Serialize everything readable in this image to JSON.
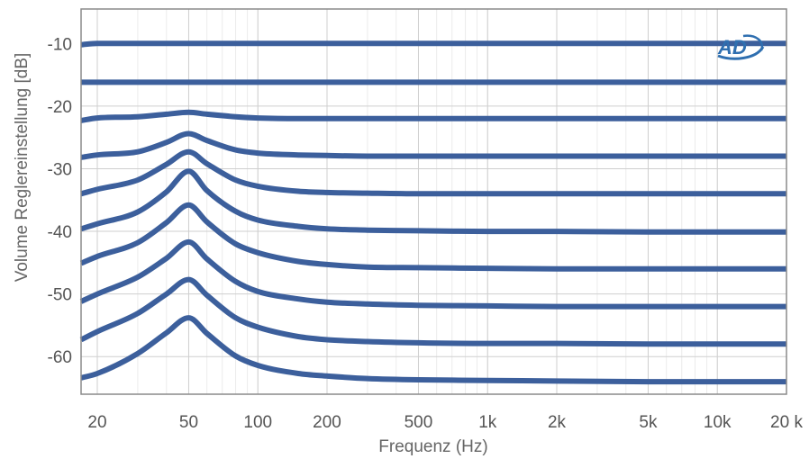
{
  "chart_data": {
    "type": "line",
    "title": "",
    "xlabel": "Frequenz (Hz)",
    "ylabel": "Volume Reglereinstellung [dB]",
    "x_scale": "log",
    "xlim": [
      17,
      20000
    ],
    "ylim": [
      -66,
      -4.5
    ],
    "grid": true,
    "legend": "none",
    "line_color": "#3c5f9c",
    "x_ticks": [
      {
        "value": 20,
        "label": "20"
      },
      {
        "value": 50,
        "label": "50"
      },
      {
        "value": 100,
        "label": "100"
      },
      {
        "value": 200,
        "label": "200"
      },
      {
        "value": 500,
        "label": "500"
      },
      {
        "value": 1000,
        "label": "1k"
      },
      {
        "value": 2000,
        "label": "2k"
      },
      {
        "value": 5000,
        "label": "5k"
      },
      {
        "value": 10000,
        "label": "10k"
      },
      {
        "value": 20000,
        "label": "20 k"
      }
    ],
    "y_ticks": [
      {
        "value": -10,
        "label": "-10"
      },
      {
        "value": -20,
        "label": "-20"
      },
      {
        "value": -30,
        "label": "-30"
      },
      {
        "value": -40,
        "label": "-40"
      },
      {
        "value": -50,
        "label": "-50"
      },
      {
        "value": -60,
        "label": "-60"
      }
    ],
    "x": [
      17,
      20,
      30,
      40,
      50,
      60,
      80,
      100,
      150,
      200,
      300,
      500,
      1000,
      2000,
      5000,
      10000,
      20000
    ],
    "series": [
      {
        "values": [
          -10.2,
          -10,
          -10,
          -10,
          -10,
          -10,
          -10,
          -10,
          -10,
          -10,
          -10,
          -10,
          -10,
          -10,
          -10,
          -10,
          -10
        ]
      },
      {
        "values": [
          -16.2,
          -16.2,
          -16.2,
          -16.2,
          -16.2,
          -16.2,
          -16.2,
          -16.2,
          -16.2,
          -16.2,
          -16.2,
          -16.2,
          -16.2,
          -16.2,
          -16.2,
          -16.2,
          -16.2
        ]
      },
      {
        "values": [
          -22.3,
          -21.9,
          -21.7,
          -21.3,
          -21,
          -21.3,
          -21.7,
          -21.9,
          -22,
          -22,
          -22,
          -22,
          -22,
          -22,
          -22,
          -22,
          -22
        ]
      },
      {
        "values": [
          -28.2,
          -27.8,
          -27.3,
          -25.8,
          -24.4,
          -25.5,
          -27,
          -27.5,
          -27.8,
          -27.9,
          -28,
          -28,
          -28,
          -28,
          -28,
          -28,
          -28
        ]
      },
      {
        "values": [
          -34,
          -33.3,
          -31.8,
          -29.3,
          -27.3,
          -29.2,
          -31.8,
          -32.8,
          -33.6,
          -33.8,
          -33.9,
          -34,
          -34,
          -34,
          -34,
          -34,
          -34
        ]
      },
      {
        "values": [
          -39.6,
          -38.8,
          -36.9,
          -33.7,
          -30.4,
          -33.5,
          -36.8,
          -38.2,
          -39.2,
          -39.6,
          -39.8,
          -39.9,
          -40,
          -40,
          -40.1,
          -40.1,
          -40.1
        ]
      },
      {
        "values": [
          -45.1,
          -44,
          -41.8,
          -38.6,
          -35.8,
          -38.5,
          -42,
          -43.4,
          -44.8,
          -45.3,
          -45.7,
          -45.8,
          -45.9,
          -46,
          -46,
          -46,
          -46
        ]
      },
      {
        "values": [
          -51.2,
          -50,
          -47.3,
          -44.3,
          -41.7,
          -44.4,
          -48,
          -49.6,
          -50.8,
          -51.3,
          -51.6,
          -51.8,
          -51.9,
          -52,
          -52,
          -52,
          -52
        ]
      },
      {
        "values": [
          -57.3,
          -56,
          -53.1,
          -50,
          -47.7,
          -50.2,
          -53.8,
          -55.3,
          -56.8,
          -57.3,
          -57.6,
          -57.8,
          -57.9,
          -57.9,
          -58,
          -58,
          -58
        ]
      },
      {
        "values": [
          -63.4,
          -62.7,
          -59.5,
          -56.2,
          -53.8,
          -56.3,
          -59.9,
          -61.4,
          -62.7,
          -63.1,
          -63.5,
          -63.7,
          -63.8,
          -63.9,
          -64,
          -64,
          -64
        ]
      }
    ]
  },
  "logo": {
    "label": "AD",
    "color": "#2f6fb0"
  }
}
